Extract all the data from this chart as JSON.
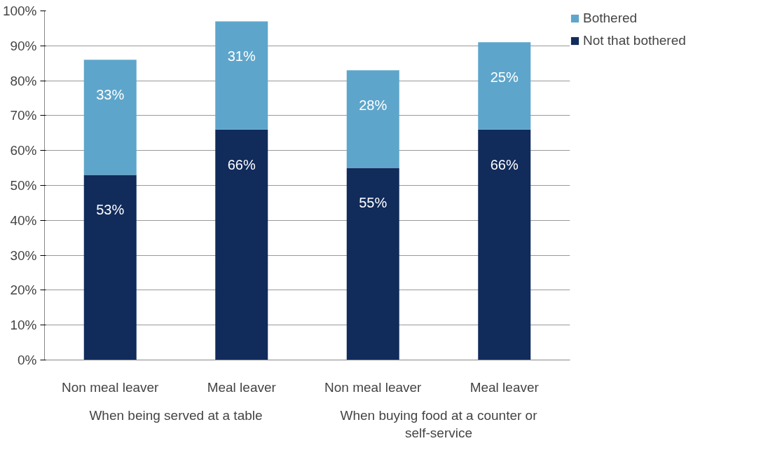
{
  "chart_data": {
    "type": "bar",
    "stacked": true,
    "categories": [
      "Non meal leaver",
      "Meal leaver",
      "Non meal leaver",
      "Meal leaver"
    ],
    "series": [
      {
        "name": "Not that bothered",
        "color": "#112b5b",
        "values": [
          53,
          66,
          55,
          66
        ],
        "value_labels": [
          "53%",
          "66%",
          "55%",
          "66%"
        ]
      },
      {
        "name": "Bothered",
        "color": "#5ea5cb",
        "values": [
          33,
          31,
          28,
          25
        ],
        "value_labels": [
          "33%",
          "31%",
          "28%",
          "25%"
        ]
      }
    ],
    "annotations": [
      "When being served at a table",
      "When buying food at a counter or self-service"
    ],
    "ylim": [
      0,
      100
    ],
    "yticks": [
      {
        "value": 0,
        "label": "0%"
      },
      {
        "value": 10,
        "label": "10%"
      },
      {
        "value": 20,
        "label": "20%"
      },
      {
        "value": 30,
        "label": "30%"
      },
      {
        "value": 40,
        "label": "40%"
      },
      {
        "value": 50,
        "label": "50%"
      },
      {
        "value": 60,
        "label": "60%"
      },
      {
        "value": 70,
        "label": "70%"
      },
      {
        "value": 80,
        "label": "80%"
      },
      {
        "value": 90,
        "label": "90%"
      },
      {
        "value": 100,
        "label": "100%"
      }
    ],
    "grid": "y",
    "legend": "top right"
  }
}
